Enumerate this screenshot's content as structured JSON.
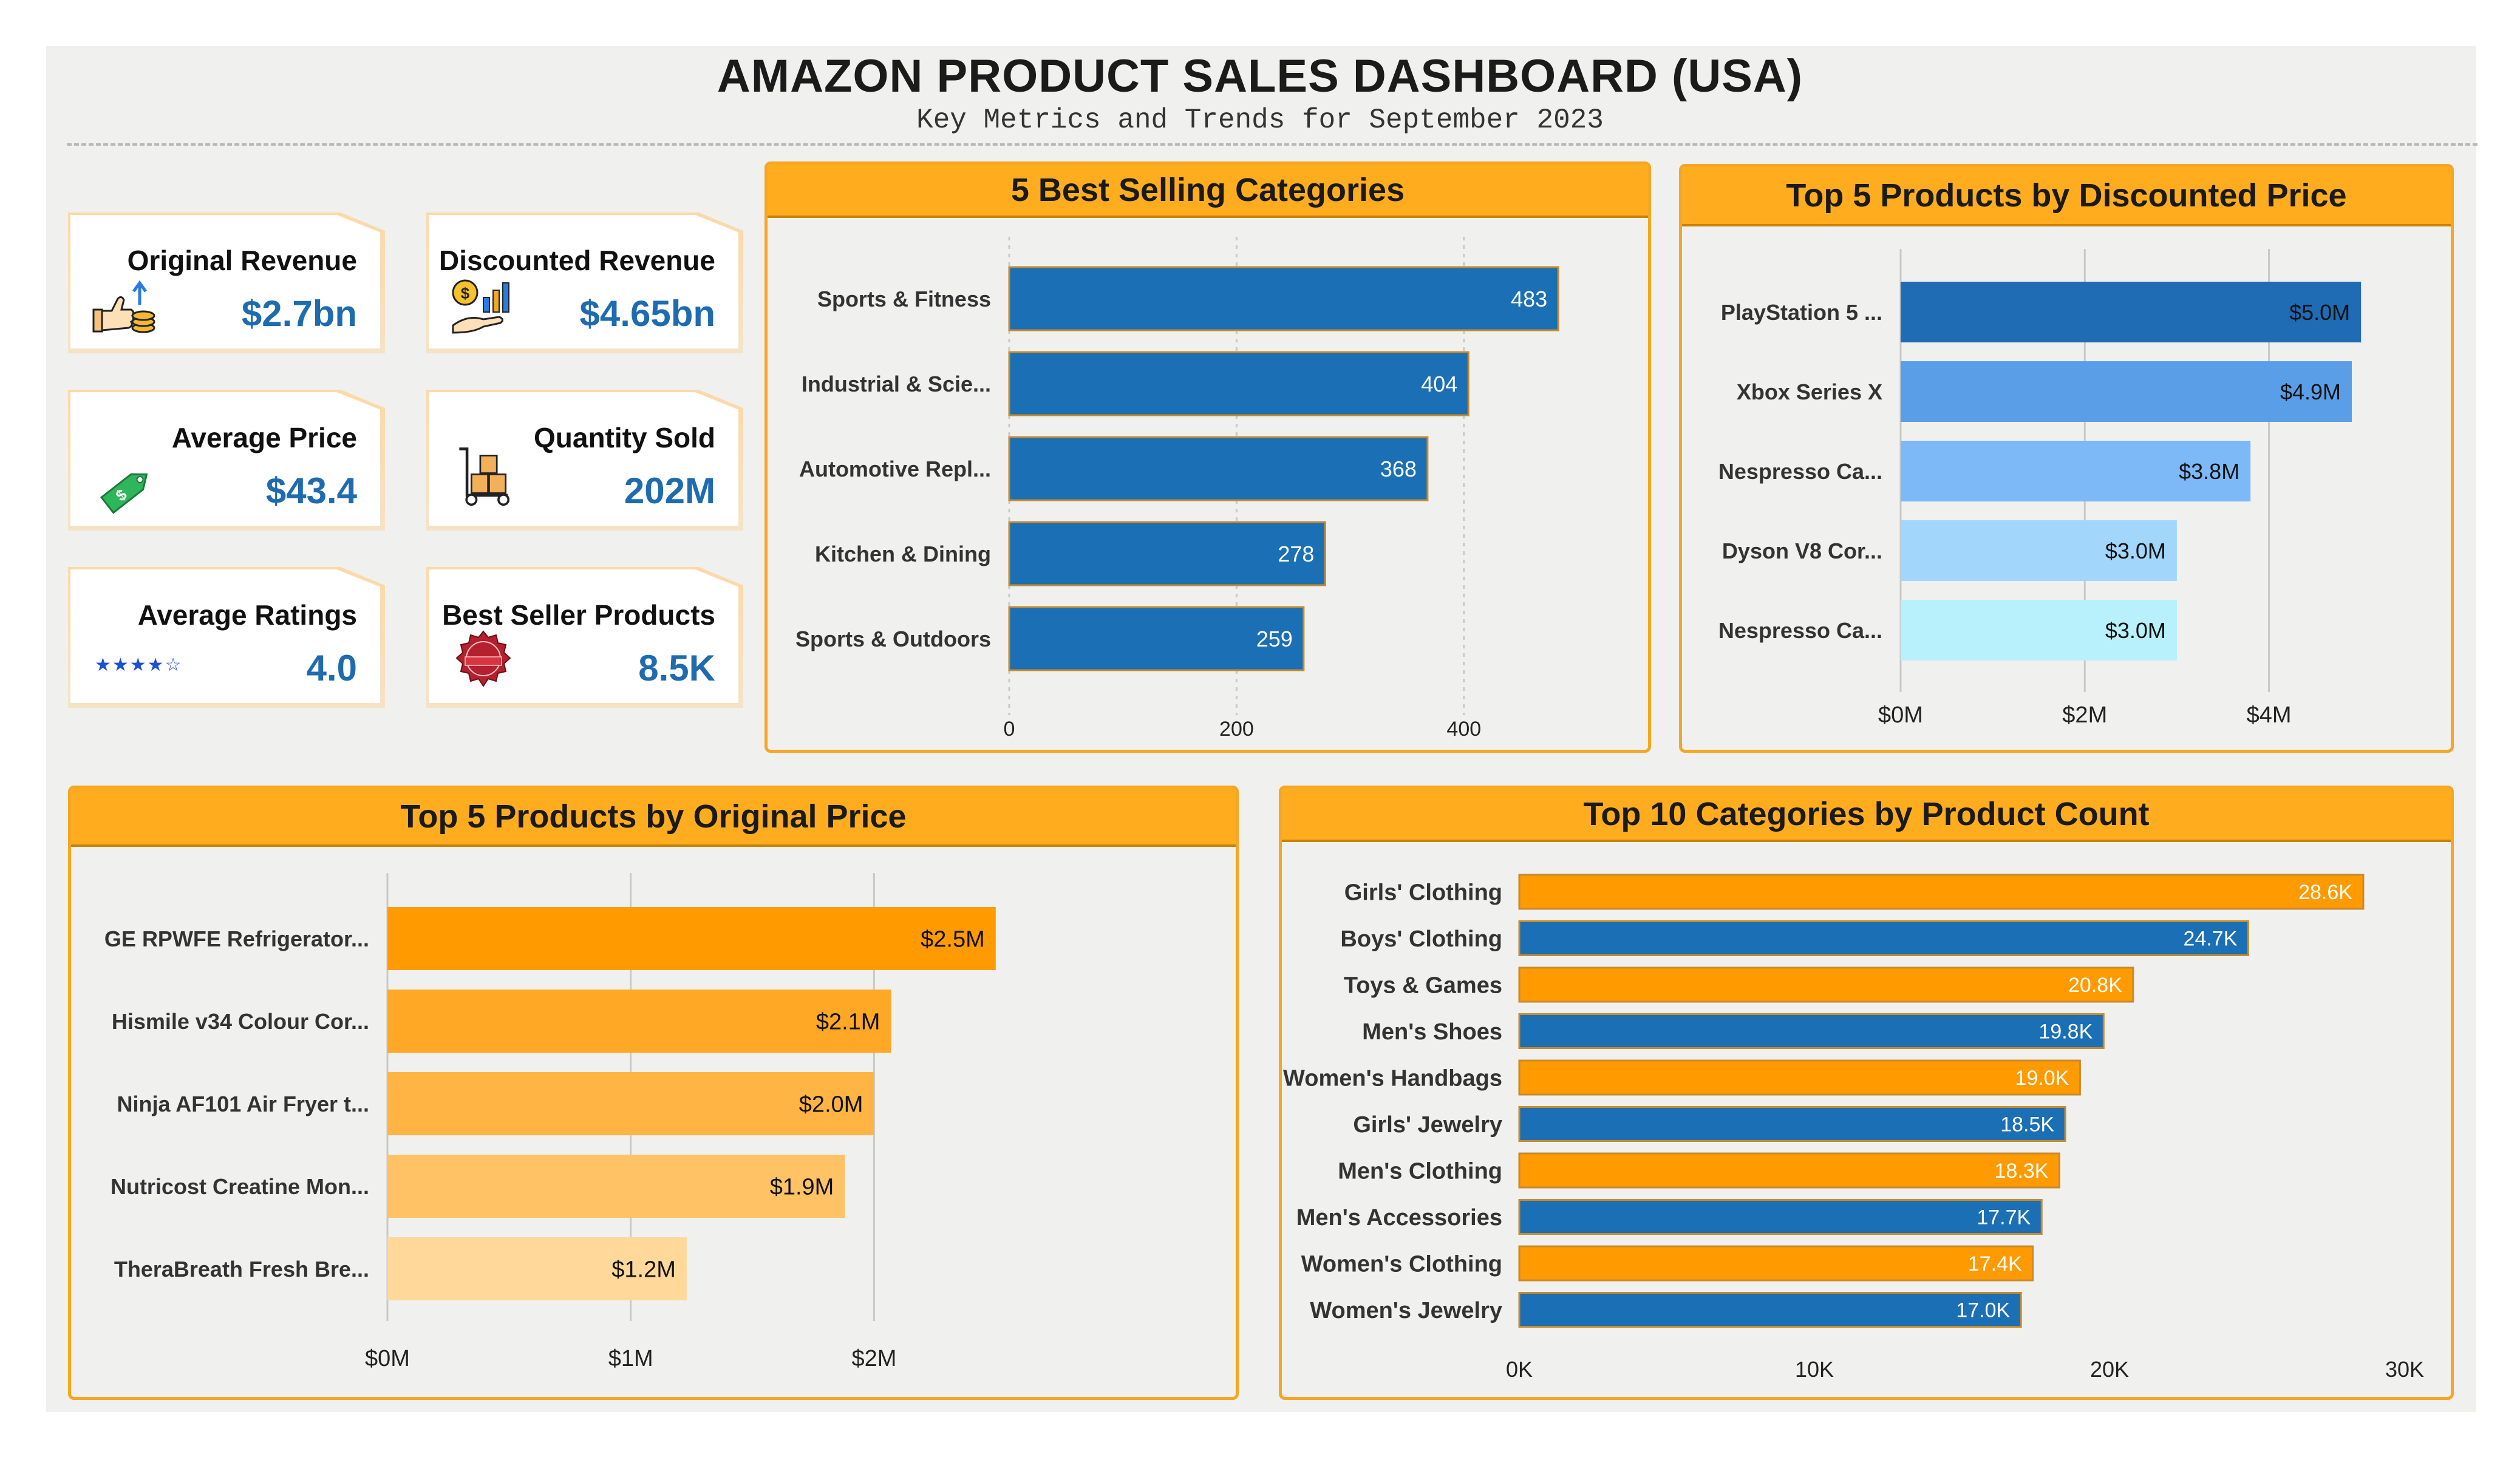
{
  "header": {
    "title": "AMAZON PRODUCT SALES DASHBOARD (USA)",
    "subtitle": "Key Metrics and Trends for September 2023"
  },
  "kpis": [
    {
      "label": "Original Revenue",
      "value": "$2.7bn",
      "icon": "thumbs-up-coins-icon"
    },
    {
      "label": "Discounted Revenue",
      "value": "$4.65bn",
      "icon": "hand-chart-coin-icon"
    },
    {
      "label": "Average Price",
      "value": "$43.4",
      "icon": "price-tag-icon"
    },
    {
      "label": "Quantity Sold",
      "value": "202M",
      "icon": "hand-truck-boxes-icon"
    },
    {
      "label": "Average Ratings",
      "value": "4.0",
      "icon": "stars-icon"
    },
    {
      "label": "Best Seller Products",
      "value": "8.5K",
      "icon": "best-seller-badge-icon"
    }
  ],
  "colors": {
    "accent_orange": "#ffad1f",
    "kpi_blue": "#1e6bb0",
    "bar_blue": "#1a6fb5",
    "bar_orange": "#ff9a00"
  },
  "chart_data": [
    {
      "id": "best-selling-categories",
      "type": "bar",
      "orientation": "horizontal",
      "title": "5 Best Selling Categories",
      "categories": [
        "Sports & Fitness",
        "Industrial & Scie...",
        "Automotive Repl...",
        "Kitchen & Dining",
        "Sports & Outdoors"
      ],
      "values": [
        483,
        404,
        368,
        278,
        259
      ],
      "value_labels": [
        "483",
        "404",
        "368",
        "278",
        "259"
      ],
      "xlim": [
        0,
        500
      ],
      "ticks": [
        0,
        200,
        400
      ],
      "tick_labels": [
        "0",
        "200",
        "400"
      ],
      "grid": true,
      "colors": [
        "#1a6fb5"
      ]
    },
    {
      "id": "top-products-discounted",
      "type": "bar",
      "orientation": "horizontal",
      "title": "Top 5 Products by Discounted Price",
      "categories": [
        "PlayStation 5 ...",
        "Xbox Series X",
        "Nespresso Ca...",
        "Dyson V8 Cor...",
        "Nespresso Ca..."
      ],
      "values": [
        5.0,
        4.9,
        3.8,
        3.0,
        3.0
      ],
      "value_labels": [
        "$5.0M",
        "$4.9M",
        "$3.8M",
        "$3.0M",
        "$3.0M"
      ],
      "xlim": [
        0,
        5.5
      ],
      "ticks": [
        0,
        2,
        4
      ],
      "tick_labels": [
        "$0M",
        "$2M",
        "$4M"
      ],
      "grid": true,
      "colors": [
        "#1f6bb4",
        "#5b9ee8",
        "#7db8f7",
        "#a3d6fb",
        "#b8f1fb"
      ]
    },
    {
      "id": "top-products-original",
      "type": "bar",
      "orientation": "horizontal",
      "title": "Top 5 Products by Original Price",
      "categories": [
        "GE RPWFE Refrigerator...",
        "Hismile v34 Colour Cor...",
        "Ninja AF101 Air Fryer t...",
        "Nutricost Creatine Mon...",
        "TheraBreath Fresh Bre..."
      ],
      "values": [
        2.5,
        2.07,
        2.0,
        1.88,
        1.23
      ],
      "value_labels": [
        "$2.5M",
        "$2.1M",
        "$2.0M",
        "$1.9M",
        "$1.2M"
      ],
      "xlim": [
        0,
        2.8
      ],
      "ticks": [
        0,
        1,
        2
      ],
      "tick_labels": [
        "$0M",
        "$1M",
        "$2M"
      ],
      "grid": true,
      "colors": [
        "#ff9a00",
        "#ffa826",
        "#ffb444",
        "#ffc265",
        "#ffd89a"
      ]
    },
    {
      "id": "top-categories-count",
      "type": "bar",
      "orientation": "horizontal",
      "title": "Top 10 Categories by Product Count",
      "categories": [
        "Girls' Clothing",
        "Boys' Clothing",
        "Toys & Games",
        "Men's Shoes",
        "Women's Handbags",
        "Girls' Jewelry",
        "Men's Clothing",
        "Men's Accessories",
        "Women's Clothing",
        "Women's Jewelry"
      ],
      "values": [
        28.6,
        24.7,
        20.8,
        19.8,
        19.0,
        18.5,
        18.3,
        17.7,
        17.4,
        17.0
      ],
      "value_labels": [
        "28.6K",
        "24.7K",
        "20.8K",
        "19.8K",
        "19.0K",
        "18.5K",
        "18.3K",
        "17.7K",
        "17.4K",
        "17.0K"
      ],
      "xlim": [
        0,
        30
      ],
      "ticks": [
        0,
        10,
        20,
        30
      ],
      "tick_labels": [
        "0K",
        "10K",
        "20K",
        "30K"
      ],
      "grid": false,
      "colors": [
        "#ff9a00",
        "#1a6fb5"
      ]
    }
  ]
}
